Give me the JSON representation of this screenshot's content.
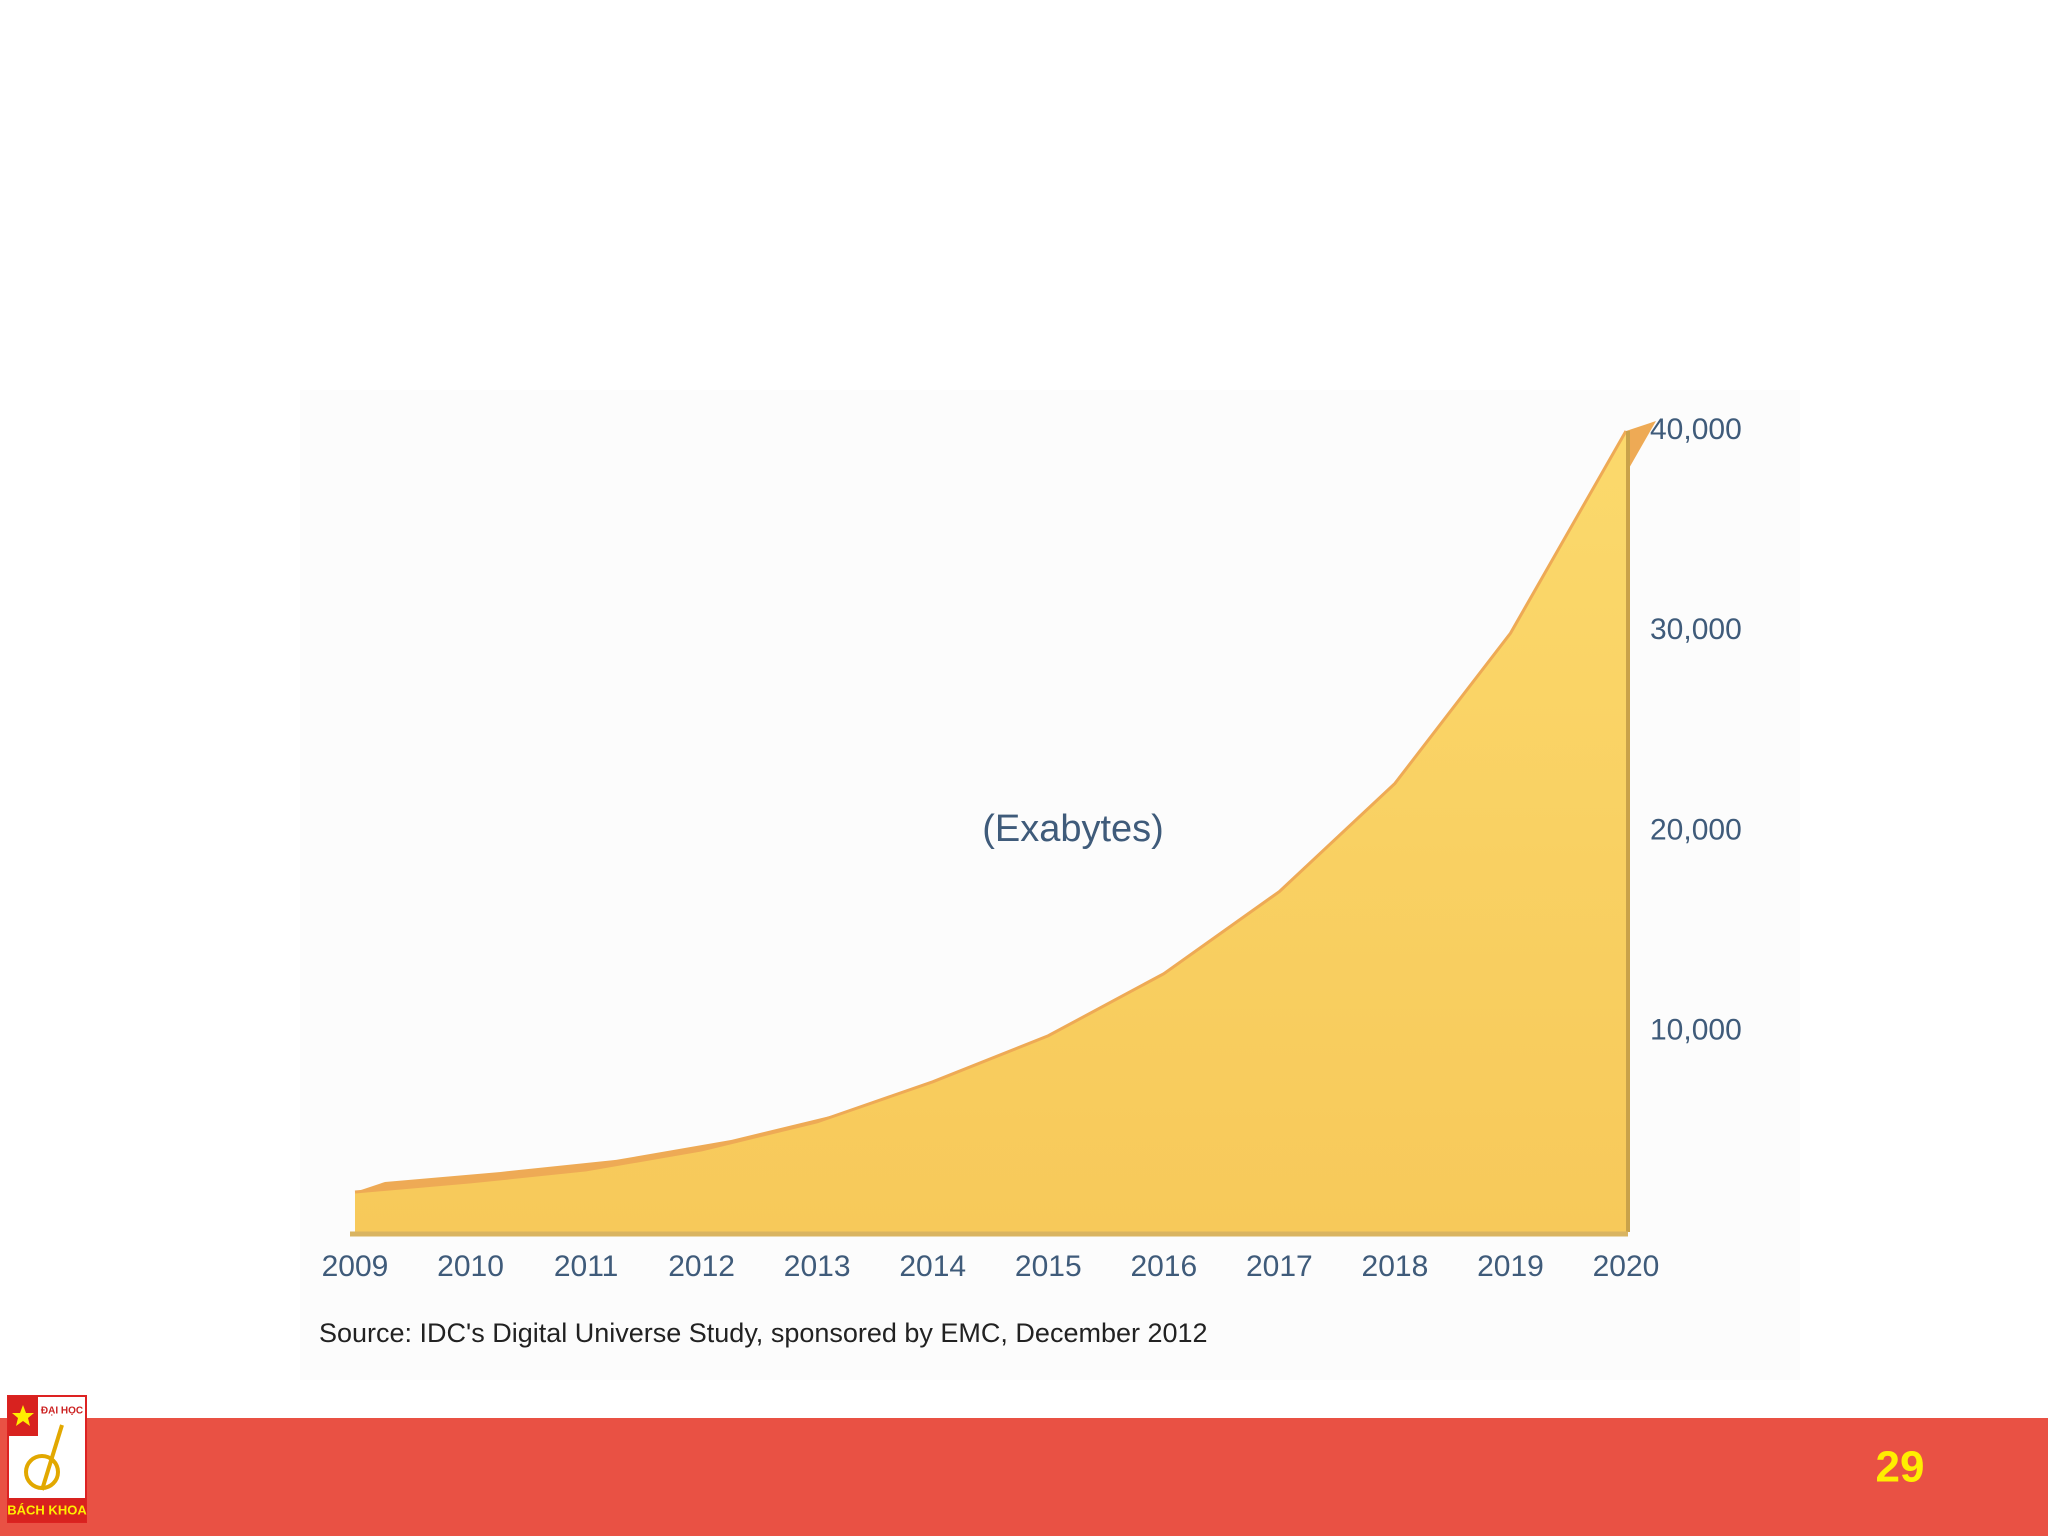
{
  "chart_data": {
    "type": "area",
    "annotation": "(Exabytes)",
    "source": "Source: IDC's Digital Universe Study, sponsored by EMC, December 2012",
    "categories": [
      "2009",
      "2010",
      "2011",
      "2012",
      "2013",
      "2014",
      "2015",
      "2016",
      "2017",
      "2018",
      "2019",
      "2020"
    ],
    "values": [
      2000,
      2500,
      3100,
      4100,
      5500,
      7500,
      9800,
      12900,
      17000,
      22400,
      29900,
      40000
    ],
    "color": "#f9d266",
    "edge_color": "#eeaa55",
    "ylim": [
      0,
      40000
    ],
    "yticks": [
      {
        "value": 10000,
        "label": "10,000"
      },
      {
        "value": 20000,
        "label": "20,000"
      },
      {
        "value": 30000,
        "label": "30,000"
      },
      {
        "value": 40000,
        "label": "40,000"
      }
    ],
    "grid": false
  },
  "footer": {
    "page_number": "29",
    "logo_top": "ĐẠI HỌC",
    "logo_bottom": "BÁCH KHOA"
  }
}
